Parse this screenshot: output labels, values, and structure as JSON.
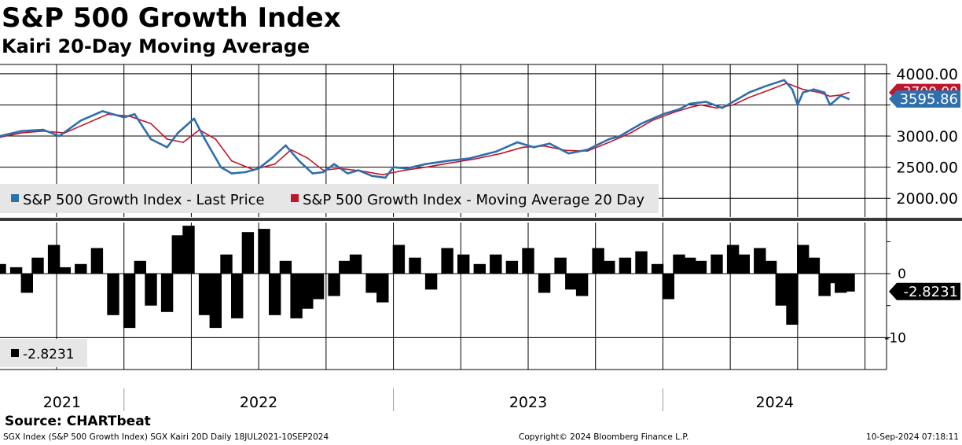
{
  "chart_data": {
    "title": "S&P 500 Growth Index",
    "subtitle": "Kairi 20-Day Moving Average",
    "type": "line",
    "x_years": [
      "2021",
      "2022",
      "2023",
      "2024"
    ],
    "price_panel": {
      "type": "line",
      "ylim": [
        1700,
        4150
      ],
      "yticks": [
        2000,
        2500,
        3000,
        4000
      ],
      "ytick_labels": [
        "2000.00",
        "2500.00",
        "3000.00",
        "4000.00"
      ],
      "series": [
        {
          "name": "S&P 500 Growth Index - Last Price",
          "color": "#2e6fac",
          "last_value_label": "3595.86",
          "x": [
            2021.54,
            2021.62,
            2021.7,
            2021.76,
            2021.84,
            2021.92,
            2022.0,
            2022.04,
            2022.1,
            2022.16,
            2022.2,
            2022.26,
            2022.3,
            2022.36,
            2022.4,
            2022.45,
            2022.5,
            2022.55,
            2022.6,
            2022.65,
            2022.7,
            2022.74,
            2022.78,
            2022.83,
            2022.87,
            2022.92,
            2022.97,
            2023.0,
            2023.05,
            2023.12,
            2023.2,
            2023.28,
            2023.38,
            2023.46,
            2023.52,
            2023.58,
            2023.65,
            2023.72,
            2023.8,
            2023.84,
            2023.92,
            2024.0,
            2024.06,
            2024.1,
            2024.16,
            2024.22,
            2024.28,
            2024.32,
            2024.38,
            2024.45,
            2024.48,
            2024.5,
            2024.52,
            2024.56,
            2024.6,
            2024.62,
            2024.66,
            2024.69
          ],
          "values": [
            3000,
            3080,
            3100,
            3000,
            3250,
            3400,
            3300,
            3350,
            2950,
            2820,
            3050,
            3280,
            2950,
            2500,
            2400,
            2420,
            2480,
            2650,
            2850,
            2600,
            2400,
            2420,
            2550,
            2400,
            2450,
            2360,
            2330,
            2500,
            2480,
            2550,
            2600,
            2640,
            2750,
            2900,
            2820,
            2880,
            2720,
            2780,
            2950,
            3000,
            3200,
            3350,
            3430,
            3520,
            3550,
            3450,
            3600,
            3700,
            3800,
            3900,
            3750,
            3500,
            3700,
            3750,
            3700,
            3500,
            3650,
            3596
          ]
        },
        {
          "name": "S&P 500 Growth Index - Moving Average 20 Day",
          "color": "#c0162c",
          "last_value_label": "3700.00",
          "x": [
            2021.54,
            2021.62,
            2021.7,
            2021.78,
            2021.86,
            2021.94,
            2022.02,
            2022.1,
            2022.16,
            2022.22,
            2022.28,
            2022.34,
            2022.4,
            2022.48,
            2022.56,
            2022.62,
            2022.68,
            2022.74,
            2022.8,
            2022.88,
            2022.96,
            2023.04,
            2023.12,
            2023.2,
            2023.3,
            2023.4,
            2023.48,
            2023.56,
            2023.64,
            2023.72,
            2023.8,
            2023.88,
            2023.96,
            2024.04,
            2024.1,
            2024.14,
            2024.2,
            2024.26,
            2024.32,
            2024.4,
            2024.46,
            2024.52,
            2024.58,
            2024.62,
            2024.66,
            2024.69
          ],
          "values": [
            2980,
            3050,
            3080,
            3050,
            3200,
            3350,
            3320,
            3200,
            2950,
            2900,
            3100,
            2950,
            2600,
            2460,
            2550,
            2780,
            2650,
            2450,
            2480,
            2440,
            2380,
            2450,
            2500,
            2560,
            2630,
            2720,
            2820,
            2840,
            2770,
            2760,
            2900,
            3050,
            3250,
            3380,
            3460,
            3500,
            3450,
            3500,
            3620,
            3750,
            3850,
            3750,
            3700,
            3640,
            3660,
            3700
          ]
        }
      ]
    },
    "kairi_panel": {
      "type": "bar",
      "ylim": [
        -15,
        8
      ],
      "yticks": [
        0,
        -10
      ],
      "ytick_labels": [
        "0",
        "-10"
      ],
      "last_value_label": "-2.8231",
      "legend_entry": "-2.8231",
      "color": "#000000",
      "x": [
        2021.54,
        2021.6,
        2021.64,
        2021.68,
        2021.74,
        2021.78,
        2021.84,
        2021.9,
        2021.96,
        2022.02,
        2022.06,
        2022.1,
        2022.16,
        2022.2,
        2022.24,
        2022.3,
        2022.34,
        2022.38,
        2022.42,
        2022.46,
        2022.52,
        2022.56,
        2022.6,
        2022.64,
        2022.68,
        2022.72,
        2022.78,
        2022.82,
        2022.86,
        2022.92,
        2022.96,
        2023.02,
        2023.08,
        2023.14,
        2023.2,
        2023.26,
        2023.32,
        2023.38,
        2023.44,
        2023.5,
        2023.56,
        2023.62,
        2023.66,
        2023.7,
        2023.76,
        2023.8,
        2023.86,
        2023.92,
        2023.98,
        2024.02,
        2024.06,
        2024.1,
        2024.14,
        2024.2,
        2024.26,
        2024.3,
        2024.36,
        2024.4,
        2024.44,
        2024.48,
        2024.52,
        2024.56,
        2024.6,
        2024.63,
        2024.66,
        2024.69
      ],
      "values": [
        1.5,
        1.0,
        -3.0,
        2.5,
        4.5,
        1.0,
        1.5,
        4.0,
        -6.5,
        -8.5,
        2.0,
        -5.0,
        -6.0,
        6.0,
        7.5,
        -6.5,
        -8.5,
        3.0,
        -7.0,
        6.5,
        7.0,
        -6.5,
        2.0,
        -7.0,
        -5.5,
        -4.0,
        -3.5,
        2.0,
        3.0,
        -3.0,
        -4.5,
        4.5,
        2.5,
        -2.5,
        4.0,
        3.0,
        1.5,
        3.0,
        2.0,
        4.0,
        -3.0,
        2.5,
        -2.5,
        -3.5,
        4.0,
        2.0,
        2.5,
        3.5,
        1.5,
        -4.0,
        3.0,
        2.5,
        2.0,
        3.0,
        4.5,
        3.0,
        4.0,
        2.0,
        -5.0,
        -8.0,
        4.5,
        2.5,
        -3.5,
        -1.5,
        -3.0,
        -2.8
      ]
    },
    "legend": {
      "entries": [
        "S&P 500 Growth Index - Last Price",
        "S&P 500 Growth Index - Moving Average 20 Day"
      ],
      "placement": "bottom-left of price panel"
    }
  },
  "source": "Source: CHARTbeat",
  "footer": {
    "left": "SGX Index (S&P 500 Growth Index) SGX Kairi 20D  Daily 18JUL2021-10SEP2024",
    "center": "Copyright© 2024 Bloomberg Finance L.P.",
    "right": "10-Sep-2024 07:18:11"
  }
}
